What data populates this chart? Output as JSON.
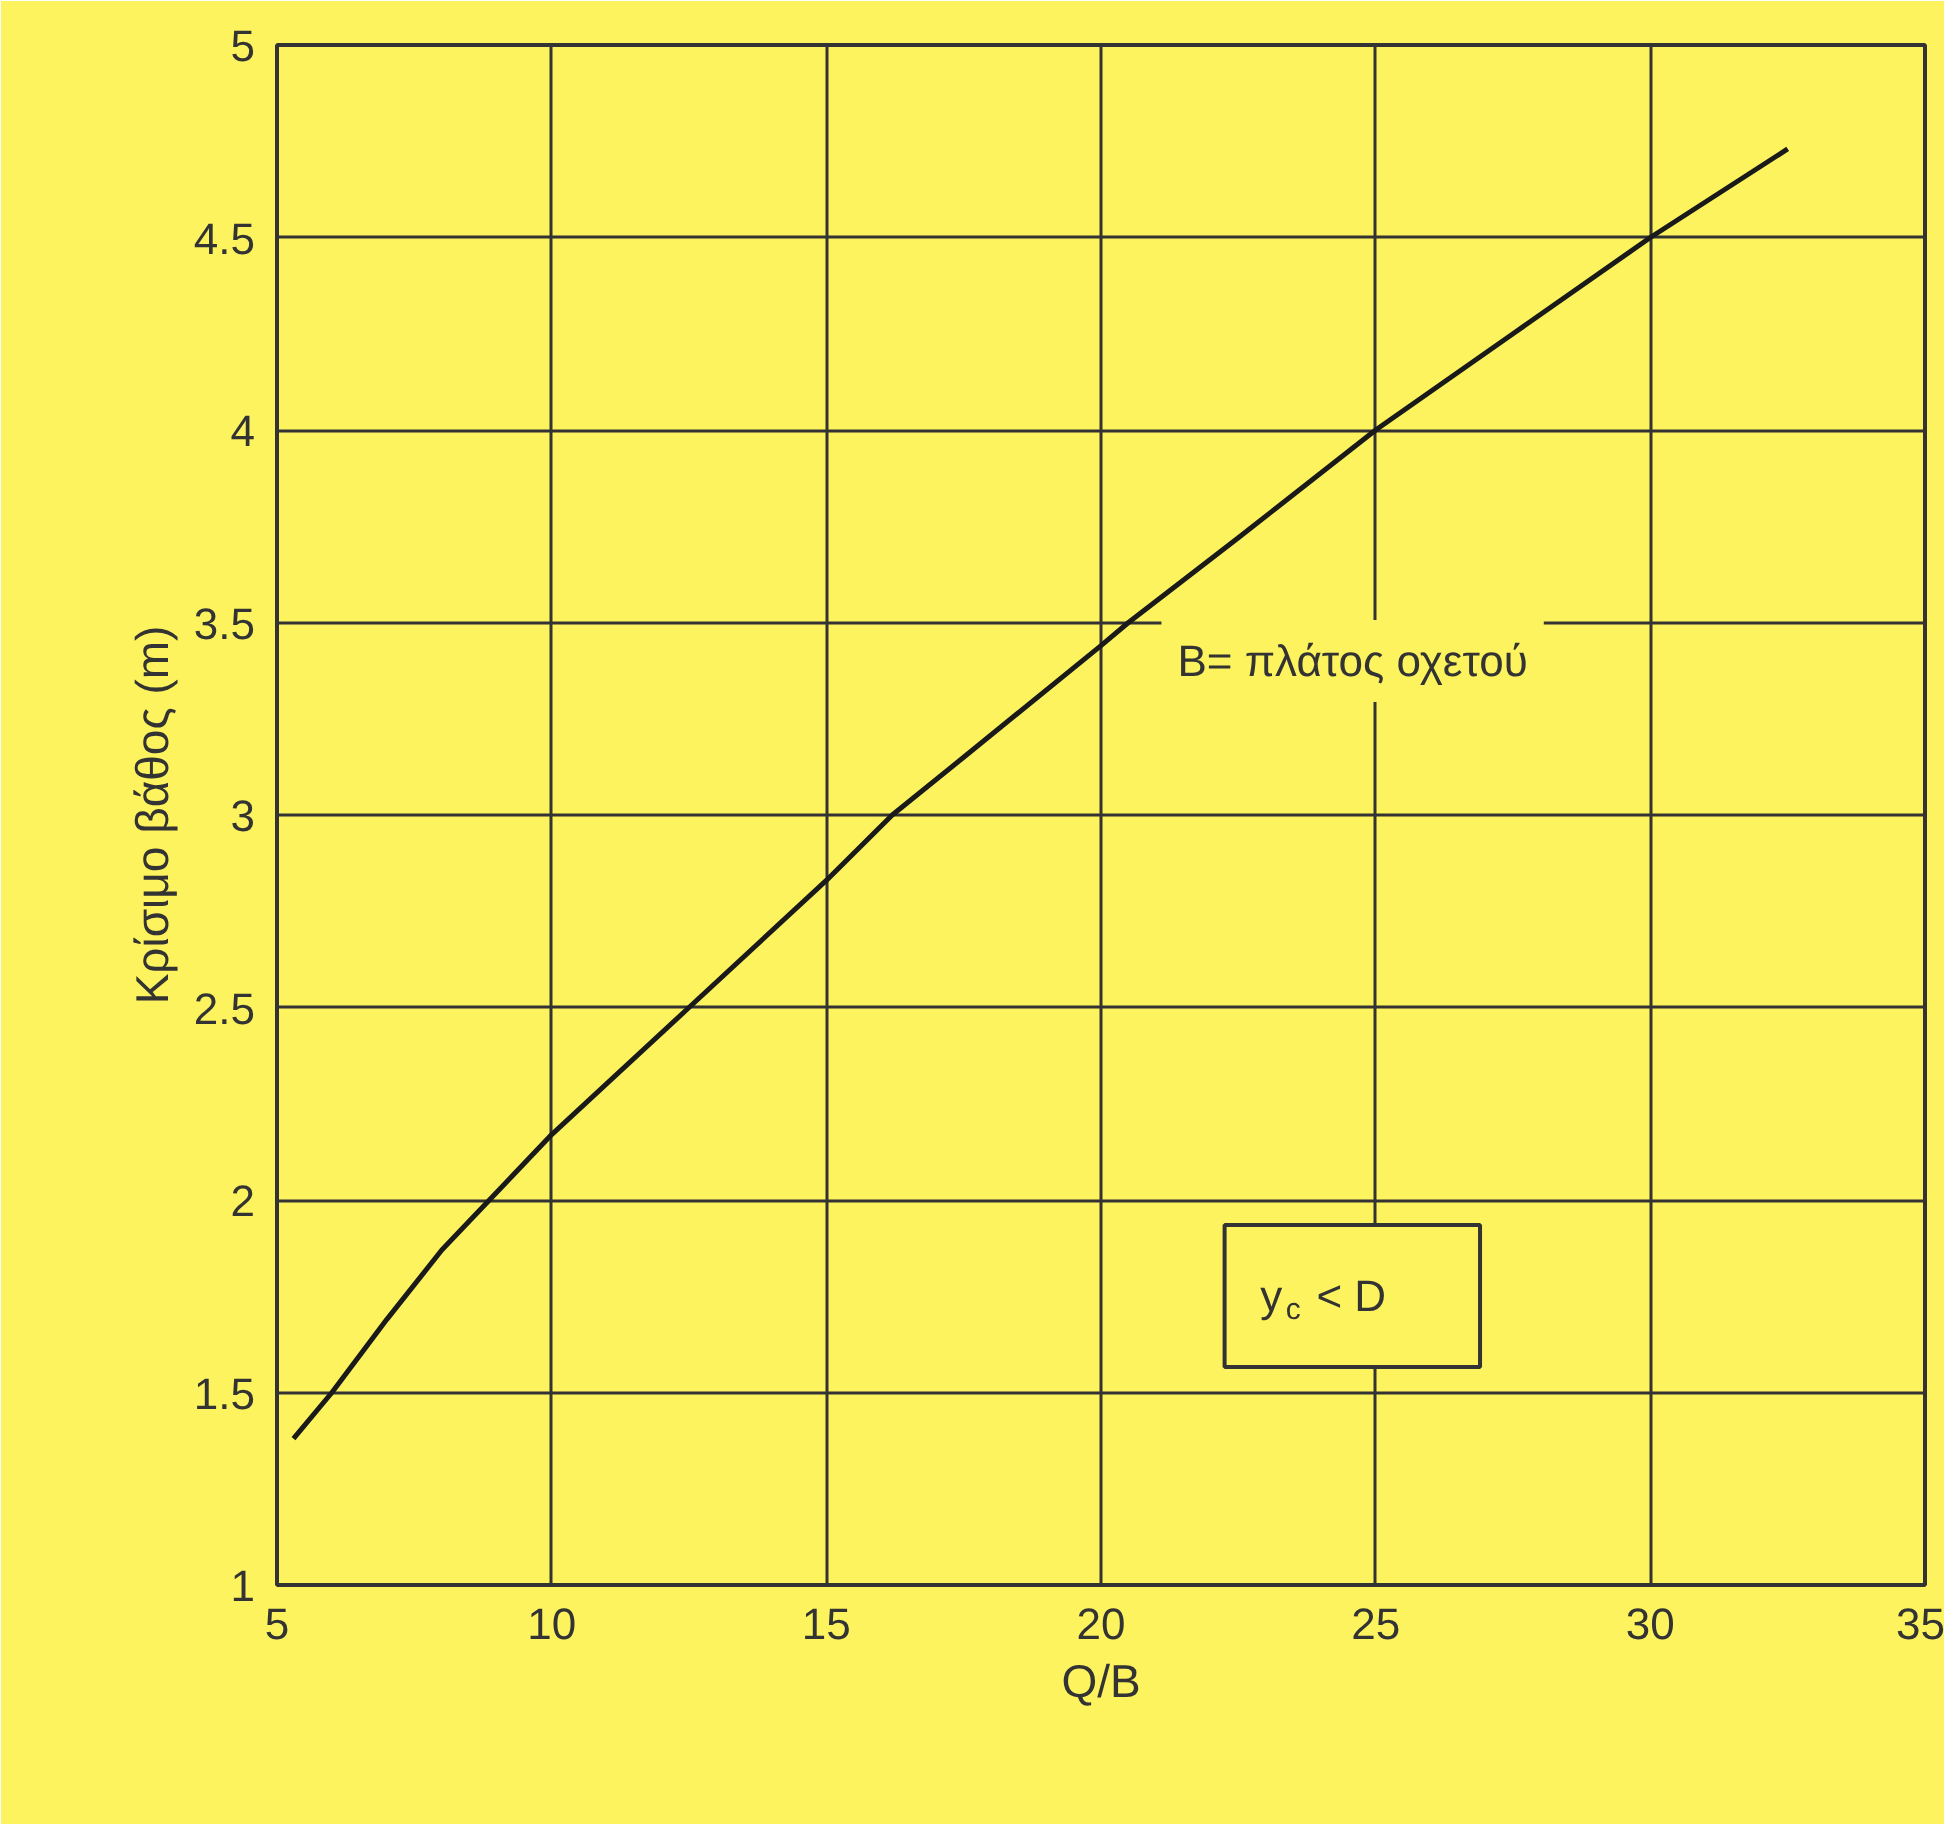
{
  "chart_data": {
    "type": "line",
    "xlabel": "Q/B",
    "ylabel": "Κρίσιμο βάθος (m)",
    "x": [
      5.3,
      6,
      7,
      8,
      9.2,
      10,
      12.5,
      15,
      16.2,
      17.5,
      20,
      20.5,
      22.5,
      25,
      27.5,
      30,
      32.5
    ],
    "series": [
      {
        "color": "#1a1a1a",
        "values": [
          1.38,
          1.5,
          1.69,
          1.87,
          2.05,
          2.17,
          2.5,
          2.83,
          3.0,
          3.15,
          3.44,
          3.5,
          3.72,
          4.0,
          4.25,
          4.5,
          4.73
        ]
      }
    ],
    "xlim": [
      5,
      35
    ],
    "ylim": [
      1,
      5
    ],
    "xticks": [
      5,
      10,
      15,
      20,
      25,
      30,
      35
    ],
    "yticks": [
      1,
      1.5,
      2,
      2.5,
      3,
      3.5,
      4,
      4.5,
      5
    ],
    "grid": true,
    "marker": "none",
    "line_style": "solid",
    "annotations": [
      "B= πλάτος οχετού",
      "y$_{c}$ < D"
    ]
  }
}
